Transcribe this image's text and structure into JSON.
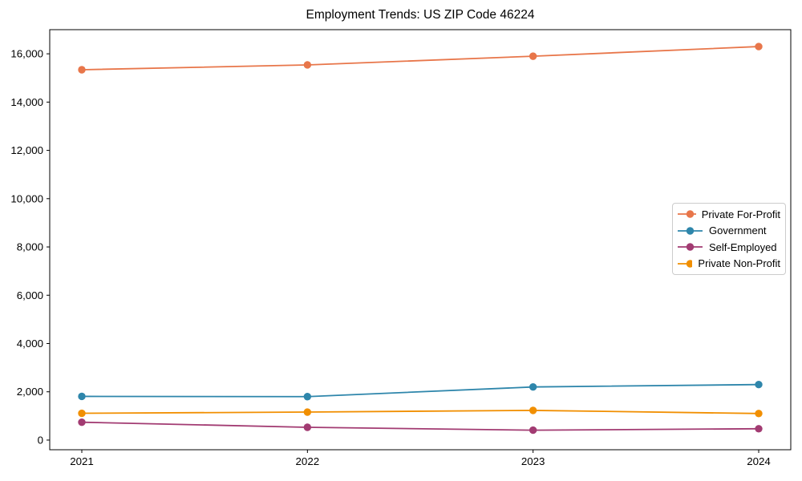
{
  "title": "Employment Trends: US ZIP Code 46224",
  "chart_data": {
    "type": "line",
    "title": "Employment Trends: US ZIP Code 46224",
    "xlabel": "",
    "ylabel": "",
    "x": [
      2021,
      2022,
      2023,
      2024
    ],
    "xtick_labels": [
      "2021",
      "2022",
      "2023",
      "2024"
    ],
    "series": [
      {
        "name": "Private For-Profit",
        "color": "#E8764A",
        "values": [
          15340,
          15540,
          15900,
          16300
        ]
      },
      {
        "name": "Government",
        "color": "#2E86AB",
        "values": [
          1810,
          1800,
          2200,
          2300
        ]
      },
      {
        "name": "Self-Employed",
        "color": "#A23B72",
        "values": [
          740,
          530,
          410,
          470
        ]
      },
      {
        "name": "Private Non-Profit",
        "color": "#F18F01",
        "values": [
          1110,
          1160,
          1230,
          1100
        ]
      }
    ],
    "yticks": [
      0,
      2000,
      4000,
      6000,
      8000,
      10000,
      12000,
      14000,
      16000
    ],
    "ytick_labels": [
      "0",
      "2,000",
      "4,000",
      "6,000",
      "8,000",
      "10,000",
      "12,000",
      "14,000",
      "16,000"
    ],
    "ylim": [
      -400,
      17000
    ],
    "grid": false,
    "legend_position": "center-right",
    "marker": "circle",
    "frame_color": "#000000"
  }
}
